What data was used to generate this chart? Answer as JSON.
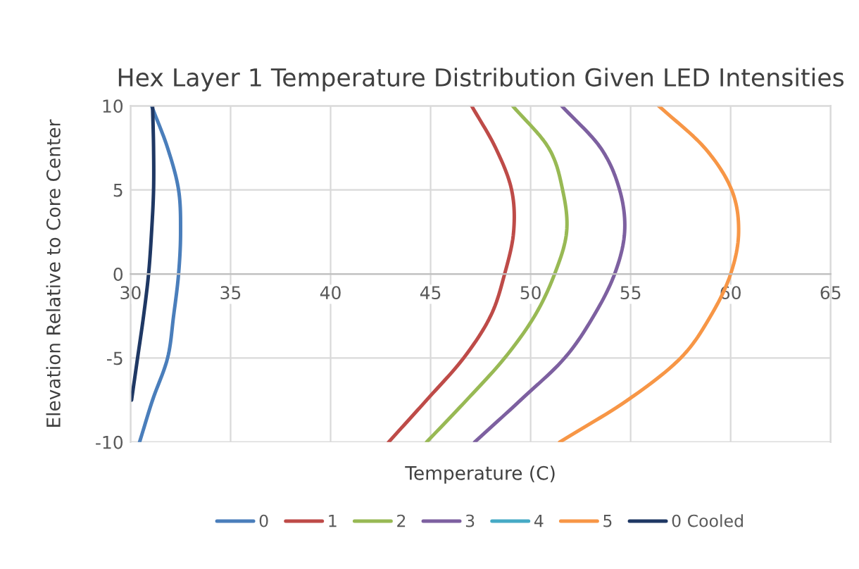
{
  "chart_data": {
    "type": "line",
    "title": "Hex Layer 1 Temperature Distribution Given LED Intensities",
    "xlabel": "Temperature (C)",
    "ylabel": "Elevation Relative to Core Center",
    "xlim": [
      30,
      65
    ],
    "xticks": [
      30,
      35,
      40,
      45,
      50,
      55,
      60,
      65
    ],
    "ylim": [
      -10,
      10
    ],
    "yticks": [
      -10,
      -5,
      0,
      5,
      10
    ],
    "grid": true,
    "legend": "bottom",
    "series": [
      {
        "name": "0",
        "color": "#4a7ebb",
        "x": [
          30.45,
          31.1,
          31.85,
          32.15,
          32.4,
          32.5,
          32.4,
          31.85,
          31.05
        ],
        "values": [
          -10,
          -7.5,
          -5,
          -2.5,
          0,
          2.5,
          5,
          7.5,
          10
        ]
      },
      {
        "name": "1",
        "color": "#be4b48",
        "x": [
          42.9,
          44.8,
          46.65,
          48.0,
          48.7,
          49.15,
          49.05,
          48.25,
          47.05
        ],
        "values": [
          -10,
          -7.5,
          -5,
          -2.5,
          0,
          2.5,
          5,
          7.5,
          10
        ]
      },
      {
        "name": "2",
        "color": "#98b954",
        "x": [
          44.8,
          46.8,
          48.7,
          50.2,
          51.2,
          51.8,
          51.6,
          50.9,
          49.1
        ],
        "values": [
          -10,
          -7.5,
          -5,
          -2.5,
          0,
          2.5,
          5,
          7.5,
          10
        ]
      },
      {
        "name": "3",
        "color": "#7d60a0",
        "x": [
          47.2,
          49.5,
          51.7,
          53.15,
          54.2,
          54.7,
          54.45,
          53.5,
          51.55
        ],
        "values": [
          -10,
          -7.5,
          -5,
          -2.5,
          0,
          2.5,
          5,
          7.5,
          10
        ]
      },
      {
        "name": "4",
        "color": "#46aac5",
        "x": [
          null,
          null,
          null,
          null,
          null,
          null,
          null,
          null,
          null
        ],
        "values": [
          null,
          null,
          null,
          null,
          null,
          null,
          null,
          null,
          null
        ]
      },
      {
        "name": "5",
        "color": "#f79646",
        "x": [
          51.45,
          54.85,
          57.5,
          59.0,
          60.0,
          60.4,
          60.05,
          58.7,
          56.4
        ],
        "values": [
          -10,
          -7.5,
          -5,
          -2.5,
          0,
          2.5,
          5,
          7.5,
          10
        ]
      },
      {
        "name": "0 Cooled",
        "color": "#1f3864",
        "x": [
          null,
          30.05,
          30.35,
          30.65,
          30.9,
          31.05,
          31.15,
          31.15,
          31.1
        ],
        "values": [
          null,
          -7.5,
          -5,
          -2.5,
          0,
          2.5,
          5,
          7.5,
          10
        ]
      }
    ]
  }
}
